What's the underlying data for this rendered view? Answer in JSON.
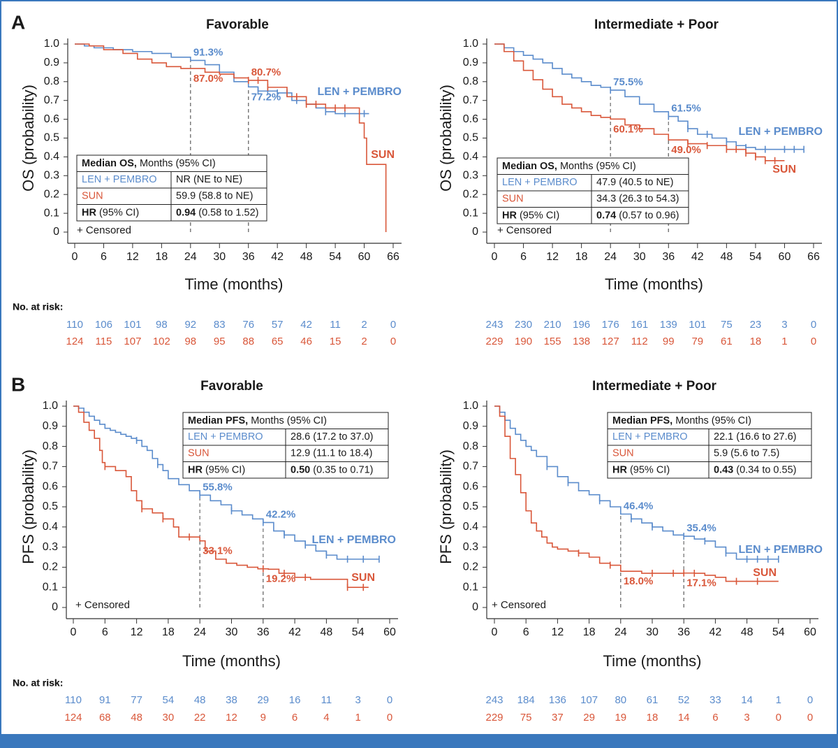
{
  "panel_labels": [
    "A",
    "B"
  ],
  "chart_data": [
    {
      "type": "line",
      "title": "Favorable",
      "x_label": "Time (months)",
      "y_label": "OS (probability)",
      "xlim": [
        0,
        66
      ],
      "xticks": [
        0,
        6,
        12,
        18,
        24,
        30,
        36,
        42,
        48,
        54,
        60,
        66
      ],
      "ylim": [
        0,
        1
      ],
      "yticks": [
        0,
        0.1,
        0.2,
        0.3,
        0.4,
        0.5,
        0.6,
        0.7,
        0.8,
        0.9,
        {
          "value": 1,
          "label": "1.0"
        }
      ],
      "series": [
        {
          "name": "LEN + PEMBRO",
          "color": "#5b8ccc",
          "x": [
            0,
            2,
            4,
            8,
            12,
            16,
            20,
            24,
            27,
            30,
            33,
            36,
            38,
            42,
            45,
            48,
            50,
            52,
            54,
            61
          ],
          "values": [
            1,
            0.99,
            0.98,
            0.97,
            0.96,
            0.95,
            0.93,
            0.913,
            0.89,
            0.85,
            0.8,
            0.772,
            0.75,
            0.74,
            0.7,
            0.68,
            0.66,
            0.64,
            0.63,
            0.63
          ],
          "censored": [
            38,
            40,
            42,
            44,
            46,
            52,
            56,
            60
          ],
          "at_risk": [
            110,
            106,
            101,
            98,
            92,
            83,
            76,
            57,
            42,
            11,
            2,
            0
          ]
        },
        {
          "name": "SUN",
          "color": "#d9573a",
          "x": [
            0,
            3,
            6,
            10,
            13,
            16,
            19,
            22,
            24,
            27,
            30,
            33,
            36,
            40,
            44,
            48,
            52,
            56,
            59,
            60,
            60.5,
            64.5
          ],
          "values": [
            1,
            0.99,
            0.97,
            0.95,
            0.92,
            0.9,
            0.88,
            0.87,
            0.87,
            0.85,
            0.84,
            0.82,
            0.807,
            0.77,
            0.72,
            0.68,
            0.66,
            0.66,
            0.58,
            0.5,
            0.36,
            0
          ],
          "censored": [
            36,
            38,
            40,
            46,
            48,
            50,
            54,
            56
          ],
          "at_risk": [
            124,
            115,
            107,
            102,
            98,
            95,
            88,
            65,
            46,
            15,
            2,
            0
          ]
        }
      ],
      "annotations": [
        {
          "x": 24,
          "series": 0,
          "value": 0.913,
          "label": "91.3%"
        },
        {
          "x": 24,
          "series": 1,
          "value": 0.87,
          "label": "87.0%"
        },
        {
          "x": 36,
          "series": 1,
          "value": 0.807,
          "label": "80.7%"
        },
        {
          "x": 36,
          "series": 0,
          "value": 0.772,
          "label": "77.2%"
        }
      ],
      "median_table": {
        "header": {
          "bold": "Median OS,",
          "text": "Months (95% CI)"
        },
        "rows": [
          {
            "label": "LEN + PEMBRO",
            "value": "NR (NE to NE)"
          },
          {
            "label": "SUN",
            "value": "59.9 (58.8 to NE)"
          },
          {
            "label": {
              "bold": "HR",
              "text": "(95% CI)"
            },
            "value": {
              "bold": "0.94",
              "text": "(0.58 to 1.52)"
            }
          }
        ]
      },
      "censor_note": "+ Censored",
      "risk_label": "No. at risk:"
    },
    {
      "type": "line",
      "title": "Intermediate + Poor",
      "x_label": "Time (months)",
      "y_label": "OS (probability)",
      "xlim": [
        0,
        66
      ],
      "xticks": [
        0,
        6,
        12,
        18,
        24,
        30,
        36,
        42,
        48,
        54,
        60,
        66
      ],
      "ylim": [
        0,
        1
      ],
      "yticks": [
        0,
        0.1,
        0.2,
        0.3,
        0.4,
        0.5,
        0.6,
        0.7,
        0.8,
        0.9,
        {
          "value": 1,
          "label": "1.0"
        }
      ],
      "series": [
        {
          "name": "LEN + PEMBRO",
          "color": "#5b8ccc",
          "x": [
            0,
            2,
            4,
            6,
            8,
            10,
            12,
            14,
            16,
            18,
            20,
            22,
            24,
            27,
            30,
            33,
            36,
            38,
            40,
            42,
            45,
            48,
            50,
            52,
            54,
            57,
            60,
            64
          ],
          "values": [
            1,
            0.98,
            0.96,
            0.94,
            0.92,
            0.9,
            0.87,
            0.84,
            0.82,
            0.8,
            0.78,
            0.77,
            0.755,
            0.72,
            0.68,
            0.64,
            0.615,
            0.59,
            0.55,
            0.52,
            0.5,
            0.48,
            0.46,
            0.45,
            0.44,
            0.44,
            0.44,
            0.44
          ],
          "censored": [
            24,
            36,
            40,
            44,
            48,
            52,
            56,
            60,
            62,
            64
          ],
          "at_risk": [
            243,
            230,
            210,
            196,
            176,
            161,
            139,
            101,
            75,
            23,
            3,
            0
          ]
        },
        {
          "name": "SUN",
          "color": "#d9573a",
          "x": [
            0,
            2,
            4,
            6,
            8,
            10,
            12,
            14,
            16,
            18,
            20,
            22,
            24,
            27,
            30,
            33,
            36,
            40,
            44,
            48,
            52,
            54,
            56,
            58,
            60
          ],
          "values": [
            1,
            0.96,
            0.91,
            0.86,
            0.81,
            0.76,
            0.72,
            0.68,
            0.66,
            0.64,
            0.62,
            0.61,
            0.601,
            0.57,
            0.55,
            0.52,
            0.49,
            0.47,
            0.46,
            0.44,
            0.42,
            0.4,
            0.38,
            0.38,
            0.38
          ],
          "censored": [
            40,
            44,
            48,
            50,
            52,
            54,
            56,
            58
          ],
          "at_risk": [
            229,
            190,
            155,
            138,
            127,
            112,
            99,
            79,
            61,
            18,
            1,
            0
          ]
        }
      ],
      "annotations": [
        {
          "x": 24,
          "series": 0,
          "value": 0.755,
          "label": "75.5%"
        },
        {
          "x": 24,
          "series": 1,
          "value": 0.601,
          "label": "60.1%"
        },
        {
          "x": 36,
          "series": 0,
          "value": 0.615,
          "label": "61.5%"
        },
        {
          "x": 36,
          "series": 1,
          "value": 0.49,
          "label": "49.0%"
        }
      ],
      "median_table": {
        "header": {
          "bold": "Median OS,",
          "text": "Months (95% CI)"
        },
        "rows": [
          {
            "label": "LEN + PEMBRO",
            "value": "47.9 (40.5 to NE)"
          },
          {
            "label": "SUN",
            "value": "34.3 (26.3 to 54.3)"
          },
          {
            "label": {
              "bold": "HR",
              "text": "(95% CI)"
            },
            "value": {
              "bold": "0.74",
              "text": "(0.57 to 0.96)"
            }
          }
        ]
      },
      "censor_note": "+ Censored",
      "risk_label": "No. at risk:"
    },
    {
      "type": "line",
      "title": "Favorable",
      "x_label": "Time (months)",
      "y_label": "PFS (probability)",
      "xlim": [
        0,
        60
      ],
      "xticks": [
        0,
        6,
        12,
        18,
        24,
        30,
        36,
        42,
        48,
        54,
        60
      ],
      "ylim": [
        0,
        1
      ],
      "yticks": [
        0,
        0.1,
        0.2,
        0.3,
        0.4,
        0.5,
        0.6,
        0.7,
        0.8,
        0.9,
        {
          "value": 1,
          "label": "1.0"
        }
      ],
      "series": [
        {
          "name": "LEN + PEMBRO",
          "color": "#5b8ccc",
          "x": [
            0,
            1,
            2,
            3,
            4,
            5,
            6,
            7,
            8,
            9,
            10,
            11,
            12,
            13,
            14,
            15,
            16,
            17,
            18,
            20,
            22,
            24,
            26,
            28,
            30,
            32,
            34,
            36,
            38,
            40,
            42,
            44,
            46,
            48,
            50,
            52,
            58
          ],
          "values": [
            1,
            0.99,
            0.97,
            0.95,
            0.93,
            0.91,
            0.89,
            0.88,
            0.87,
            0.86,
            0.85,
            0.84,
            0.83,
            0.8,
            0.78,
            0.74,
            0.71,
            0.68,
            0.64,
            0.61,
            0.58,
            0.558,
            0.53,
            0.51,
            0.48,
            0.46,
            0.44,
            0.422,
            0.38,
            0.36,
            0.33,
            0.31,
            0.28,
            0.26,
            0.24,
            0.24,
            0.24
          ],
          "censored": [
            12,
            16,
            24,
            30,
            36,
            40,
            44,
            48,
            52,
            55,
            58
          ],
          "at_risk": [
            110,
            91,
            77,
            54,
            48,
            38,
            29,
            16,
            11,
            3,
            0
          ]
        },
        {
          "name": "SUN",
          "color": "#d9573a",
          "x": [
            0,
            1,
            2,
            3,
            4,
            5,
            5.5,
            6,
            8,
            10,
            11,
            12,
            13,
            15,
            17,
            19,
            20,
            22,
            24,
            25,
            27,
            29,
            31,
            33,
            35,
            37,
            39,
            42,
            45,
            48,
            50,
            52,
            53,
            56
          ],
          "values": [
            1,
            0.97,
            0.92,
            0.88,
            0.84,
            0.78,
            0.72,
            0.7,
            0.68,
            0.65,
            0.58,
            0.53,
            0.49,
            0.47,
            0.44,
            0.4,
            0.35,
            0.35,
            0.331,
            0.28,
            0.24,
            0.22,
            0.21,
            0.2,
            0.192,
            0.19,
            0.17,
            0.15,
            0.14,
            0.14,
            0.14,
            0.1,
            0.1,
            0.1
          ],
          "censored": [
            6,
            13,
            17,
            22,
            36,
            40,
            44,
            52,
            55
          ],
          "at_risk": [
            124,
            68,
            48,
            30,
            22,
            12,
            9,
            6,
            4,
            1,
            0
          ]
        }
      ],
      "annotations": [
        {
          "x": 24,
          "series": 0,
          "value": 0.558,
          "label": "55.8%"
        },
        {
          "x": 24,
          "series": 1,
          "value": 0.331,
          "label": "33.1%"
        },
        {
          "x": 36,
          "series": 0,
          "value": 0.422,
          "label": "42.2%"
        },
        {
          "x": 36,
          "series": 1,
          "value": 0.192,
          "label": "19.2%"
        }
      ],
      "median_table": {
        "header": {
          "bold": "Median PFS,",
          "text": "Months (95% CI)"
        },
        "rows": [
          {
            "label": "LEN + PEMBRO",
            "value": "28.6 (17.2 to 37.0)"
          },
          {
            "label": "SUN",
            "value": "12.9 (11.1 to 18.4)"
          },
          {
            "label": {
              "bold": "HR",
              "text": "(95% CI)"
            },
            "value": {
              "bold": "0.50",
              "text": "(0.35 to 0.71)"
            }
          }
        ]
      },
      "censor_note": "+ Censored",
      "risk_label": "No. at risk:"
    },
    {
      "type": "line",
      "title": "Intermediate + Poor",
      "x_label": "Time (months)",
      "y_label": "PFS (probability)",
      "xlim": [
        0,
        60
      ],
      "xticks": [
        0,
        6,
        12,
        18,
        24,
        30,
        36,
        42,
        48,
        54,
        60
      ],
      "ylim": [
        0,
        1
      ],
      "yticks": [
        0,
        0.1,
        0.2,
        0.3,
        0.4,
        0.5,
        0.6,
        0.7,
        0.8,
        0.9,
        {
          "value": 1,
          "label": "1.0"
        }
      ],
      "series": [
        {
          "name": "LEN + PEMBRO",
          "color": "#5b8ccc",
          "x": [
            0,
            1,
            2,
            3,
            4,
            5,
            6,
            7,
            8,
            10,
            12,
            14,
            16,
            18,
            20,
            22,
            24,
            26,
            28,
            30,
            32,
            34,
            36,
            38,
            40,
            42,
            44,
            46,
            48,
            50,
            54
          ],
          "values": [
            1,
            0.97,
            0.93,
            0.89,
            0.86,
            0.83,
            0.8,
            0.78,
            0.75,
            0.7,
            0.65,
            0.62,
            0.58,
            0.56,
            0.53,
            0.5,
            0.464,
            0.44,
            0.42,
            0.4,
            0.38,
            0.36,
            0.354,
            0.34,
            0.33,
            0.3,
            0.27,
            0.24,
            0.24,
            0.24,
            0.24
          ],
          "censored": [
            10,
            14,
            20,
            26,
            30,
            36,
            40,
            44,
            48,
            50,
            52,
            54
          ],
          "at_risk": [
            243,
            184,
            136,
            107,
            80,
            61,
            52,
            33,
            14,
            1,
            0
          ]
        },
        {
          "name": "SUN",
          "color": "#d9573a",
          "x": [
            0,
            1,
            2,
            3,
            4,
            5,
            6,
            7,
            8,
            9,
            10,
            11,
            12,
            14,
            16,
            18,
            20,
            22,
            24,
            26,
            28,
            30,
            32,
            34,
            36,
            38,
            40,
            42,
            44,
            46,
            50,
            54
          ],
          "values": [
            1,
            0.95,
            0.85,
            0.74,
            0.66,
            0.57,
            0.48,
            0.42,
            0.38,
            0.35,
            0.32,
            0.3,
            0.29,
            0.28,
            0.27,
            0.25,
            0.22,
            0.21,
            0.18,
            0.18,
            0.17,
            0.17,
            0.17,
            0.17,
            0.171,
            0.17,
            0.16,
            0.15,
            0.13,
            0.13,
            0.13,
            0.13
          ],
          "censored": [
            16,
            22,
            30,
            34,
            36,
            38,
            46,
            50
          ],
          "at_risk": [
            229,
            75,
            37,
            29,
            19,
            18,
            14,
            6,
            3,
            0,
            0
          ]
        }
      ],
      "annotations": [
        {
          "x": 24,
          "series": 0,
          "value": 0.464,
          "label": "46.4%"
        },
        {
          "x": 24,
          "series": 1,
          "value": 0.18,
          "label": "18.0%"
        },
        {
          "x": 36,
          "series": 0,
          "value": 0.354,
          "label": "35.4%"
        },
        {
          "x": 36,
          "series": 1,
          "value": 0.171,
          "label": "17.1%"
        }
      ],
      "median_table": {
        "header": {
          "bold": "Median PFS,",
          "text": "Months (95% CI)"
        },
        "rows": [
          {
            "label": "LEN + PEMBRO",
            "value": "22.1 (16.6 to 27.6)"
          },
          {
            "label": "SUN",
            "value": "5.9 (5.6 to 7.5)"
          },
          {
            "label": {
              "bold": "HR",
              "text": "(95% CI)"
            },
            "value": {
              "bold": "0.43",
              "text": "(0.34 to 0.55)"
            }
          }
        ]
      },
      "censor_note": "+ Censored",
      "risk_label": "No. at risk:"
    }
  ]
}
